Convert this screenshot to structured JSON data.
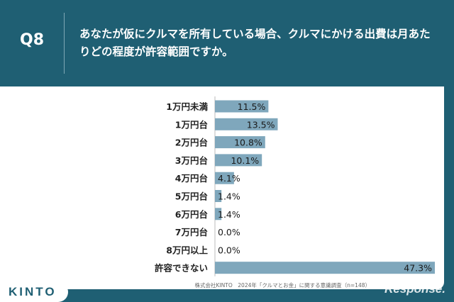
{
  "header": {
    "question_number": "Q8",
    "question_text": "あなたが仮にクルマを所有している場合、クルマにかける出費は月あたりどの程度が許容範囲ですか。"
  },
  "chart_data": {
    "type": "bar",
    "orientation": "horizontal",
    "categories": [
      "1万円未満",
      "1万円台",
      "2万円台",
      "3万円台",
      "4万円台",
      "5万円台",
      "6万円台",
      "7万円台",
      "8万円以上",
      "許容できない"
    ],
    "values": [
      11.5,
      13.5,
      10.8,
      10.1,
      4.1,
      1.4,
      1.4,
      0.0,
      0.0,
      47.3
    ],
    "value_labels": [
      "11.5%",
      "13.5%",
      "10.8%",
      "10.1%",
      "4.1%",
      "1.4%",
      "1.4%",
      "0.0%",
      "0.0%",
      "47.3%"
    ],
    "title": "",
    "xlabel": "",
    "ylabel": "",
    "xlim": [
      0,
      47.3
    ],
    "grid": false,
    "bar_color": "#7fa7bc"
  },
  "footer": {
    "source": "株式会社KINTO　2024年「クルマとお金」に関する意識調査（n=148）",
    "logo_text": "KINTO",
    "watermark": "Response."
  }
}
